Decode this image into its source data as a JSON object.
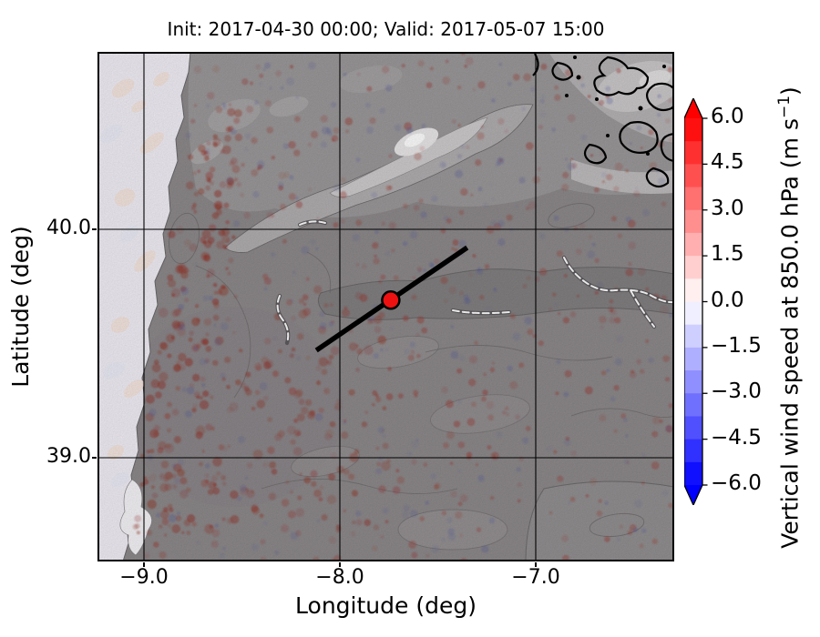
{
  "title": "Init: 2017-04-30 00:00; Valid: 2017-05-07 15:00",
  "chart_data": {
    "type": "heatmap",
    "subtype": "filled-contour-map-with-terrain",
    "title": "Init: 2017-04-30 00:00; Valid: 2017-05-07 15:00",
    "xlabel": "Longitude (deg)",
    "ylabel": "Latitude (deg)",
    "xlim": [
      -9.24,
      -6.29
    ],
    "ylim": [
      38.55,
      40.78
    ],
    "x_ticks": [
      -9.0,
      -8.0,
      -7.0
    ],
    "y_ticks": [
      40.0,
      39.0
    ],
    "grid": true,
    "grid_color": "#000000",
    "field_description": "Vertical wind speed at 850 hPa shaded (red positive / blue negative speckled cells) over gray terrain-height shading with elevation contours; pale ocean strip along west coast; black contour cluster in northeast corner",
    "colorbar": {
      "label": "Vertical wind speed at 850.0 hPa (m s⁻¹)",
      "label_prefix": "Vertical wind speed at 850.0 hPa (m s",
      "label_sup": "−1",
      "label_suffix": ")",
      "ticks": [
        6.0,
        4.5,
        3.0,
        1.5,
        0.0,
        -1.5,
        -3.0,
        -4.5,
        -6.0
      ],
      "vmin": -6.0,
      "vmax": 6.0,
      "n_segments": 16,
      "cmap": "bwr",
      "extend": "both",
      "top_arrow_color": "#ff0000",
      "bottom_arrow_color": "#0000ff"
    },
    "overlays": {
      "cross_section_line": {
        "from_lonlat": [
          -8.12,
          39.47
        ],
        "to_lonlat": [
          -7.35,
          39.92
        ],
        "color": "#000000"
      },
      "marker": {
        "lon": -7.74,
        "lat": 39.69,
        "color": "#ee1111",
        "edge_color": "#000000"
      }
    },
    "accent_colors": {
      "positive_speckle": "#9e3226",
      "negative_speckle": "#4a55a0",
      "ocean": "#f2eff7",
      "terrain_base": "#8e8a8c"
    }
  }
}
